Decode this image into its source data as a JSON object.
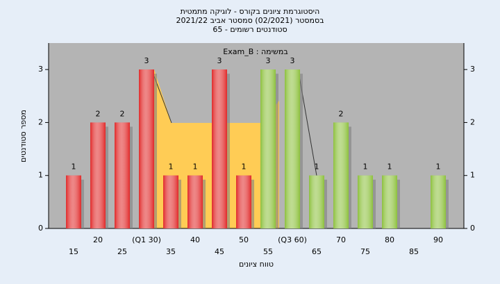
{
  "chart_data": {
    "type": "bar",
    "title": "היסטוגרמת ציונים בקורס - לוגיקה מתמטית",
    "subtitle": "בסמסטר  (02/2021)  סמסטר אביב 2021/22",
    "subtitle2": "סטודנטים רשומים - 65",
    "annotation": "במשימה : Exam_B",
    "x_label": "טווח ציונים",
    "y_label": "מספר סטודנטים",
    "categories": [
      "15",
      "20",
      "25",
      "(Q1 30)",
      "35",
      "40",
      "45",
      "50",
      "55",
      "(Q3 60)",
      "65",
      "70",
      "75",
      "80",
      "85",
      "90"
    ],
    "values": [
      1,
      2,
      2,
      3,
      1,
      1,
      3,
      1,
      3,
      3,
      1,
      2,
      1,
      1,
      null,
      1
    ],
    "colors": [
      "#e02828",
      "#e02828",
      "#e02828",
      "#e02828",
      "#e02828",
      "#e02828",
      "#e02828",
      "#e02828",
      "#8cc03c",
      "#8cc03c",
      "#8cc03c",
      "#8cc03c",
      "#8cc03c",
      "#8cc03c",
      "#8cc03c",
      "#8cc03c"
    ],
    "ylim": [
      0,
      3.5
    ],
    "yticks": [
      0,
      1,
      2,
      3
    ],
    "grid": false
  }
}
